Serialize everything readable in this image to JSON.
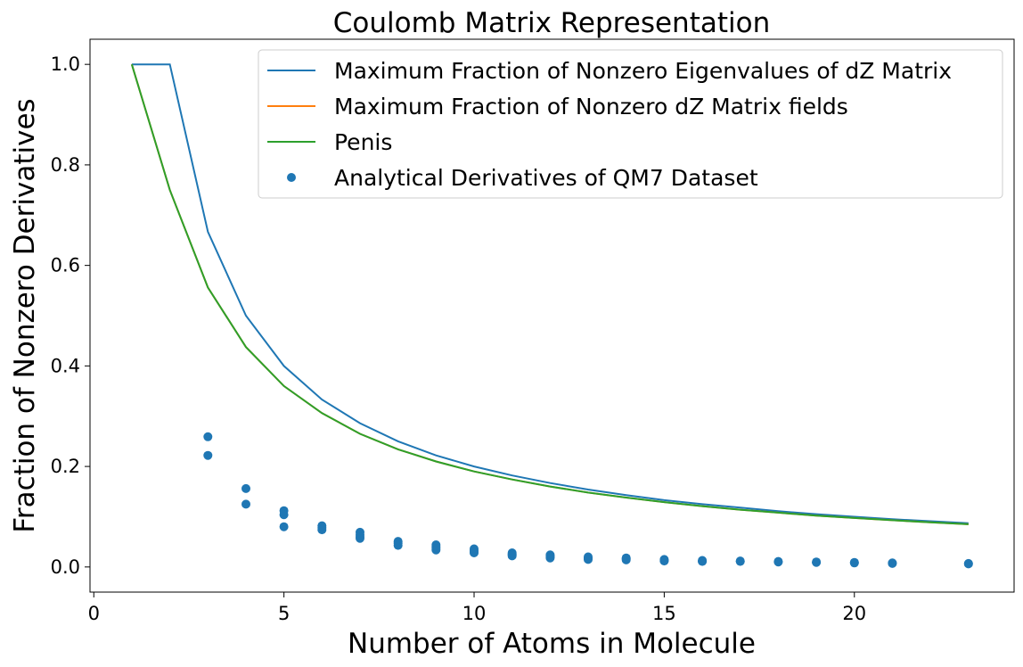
{
  "chart_data": {
    "type": "line",
    "title": "Coulomb Matrix Representation",
    "xlabel": "Number of Atoms in Molecule",
    "ylabel": "Fraction of Nonzero Derivatives",
    "xlim": [
      -0.1,
      24.2
    ],
    "ylim": [
      -0.05,
      1.05
    ],
    "xticks": [
      0,
      5,
      10,
      15,
      20
    ],
    "yticks": [
      0.0,
      0.2,
      0.4,
      0.6,
      0.8,
      1.0
    ],
    "xtick_labels": [
      "0",
      "5",
      "10",
      "15",
      "20"
    ],
    "ytick_labels": [
      "0.0",
      "0.2",
      "0.4",
      "0.6",
      "0.8",
      "1.0"
    ],
    "legend_position": "top-right",
    "grid": false,
    "series": [
      {
        "name": "Maximum Fraction of Nonzero Eigenvalues of dZ Matrix",
        "kind": "line",
        "color": "#1f77b4",
        "points": [
          [
            1,
            1.0
          ],
          [
            2,
            1.0
          ],
          [
            3,
            0.667
          ],
          [
            4,
            0.5
          ],
          [
            5,
            0.4
          ],
          [
            6,
            0.333
          ],
          [
            7,
            0.286
          ],
          [
            8,
            0.25
          ],
          [
            9,
            0.222
          ],
          [
            10,
            0.2
          ],
          [
            11,
            0.182
          ],
          [
            12,
            0.167
          ],
          [
            13,
            0.154
          ],
          [
            14,
            0.143
          ],
          [
            15,
            0.133
          ],
          [
            16,
            0.125
          ],
          [
            17,
            0.118
          ],
          [
            18,
            0.111
          ],
          [
            19,
            0.105
          ],
          [
            20,
            0.1
          ],
          [
            21,
            0.095
          ],
          [
            22,
            0.091
          ],
          [
            23,
            0.087
          ]
        ]
      },
      {
        "name": "Maximum Fraction of Nonzero dZ Matrix fields",
        "kind": "line",
        "color": "#ff7f0e",
        "points": [
          [
            1,
            1.0
          ],
          [
            2,
            0.75
          ],
          [
            3,
            0.556
          ],
          [
            4,
            0.4375
          ],
          [
            5,
            0.36
          ],
          [
            6,
            0.306
          ],
          [
            7,
            0.265
          ],
          [
            8,
            0.234
          ],
          [
            9,
            0.21
          ],
          [
            10,
            0.19
          ],
          [
            11,
            0.174
          ],
          [
            12,
            0.16
          ],
          [
            13,
            0.148
          ],
          [
            14,
            0.138
          ],
          [
            15,
            0.129
          ],
          [
            16,
            0.121
          ],
          [
            17,
            0.114
          ],
          [
            18,
            0.108
          ],
          [
            19,
            0.102
          ],
          [
            20,
            0.0975
          ],
          [
            21,
            0.093
          ],
          [
            22,
            0.089
          ],
          [
            23,
            0.085
          ]
        ]
      },
      {
        "name": "Penis",
        "kind": "line",
        "color": "#2ca02c",
        "points": [
          [
            1,
            1.0
          ],
          [
            2,
            0.75
          ],
          [
            3,
            0.556
          ],
          [
            4,
            0.4375
          ],
          [
            5,
            0.36
          ],
          [
            6,
            0.306
          ],
          [
            7,
            0.265
          ],
          [
            8,
            0.234
          ],
          [
            9,
            0.21
          ],
          [
            10,
            0.19
          ],
          [
            11,
            0.174
          ],
          [
            12,
            0.16
          ],
          [
            13,
            0.148
          ],
          [
            14,
            0.138
          ],
          [
            15,
            0.129
          ],
          [
            16,
            0.121
          ],
          [
            17,
            0.114
          ],
          [
            18,
            0.108
          ],
          [
            19,
            0.102
          ],
          [
            20,
            0.0975
          ],
          [
            21,
            0.093
          ],
          [
            22,
            0.089
          ],
          [
            23,
            0.085
          ]
        ]
      },
      {
        "name": "Analytical Derivatives of QM7 Dataset",
        "kind": "scatter",
        "color": "#1f77b4",
        "points": [
          [
            3,
            0.259
          ],
          [
            3,
            0.222
          ],
          [
            4,
            0.156
          ],
          [
            4,
            0.125
          ],
          [
            5,
            0.112
          ],
          [
            5,
            0.104
          ],
          [
            5,
            0.08
          ],
          [
            6,
            0.082
          ],
          [
            6,
            0.078
          ],
          [
            6,
            0.074
          ],
          [
            7,
            0.069
          ],
          [
            7,
            0.064
          ],
          [
            7,
            0.06
          ],
          [
            7,
            0.057
          ],
          [
            8,
            0.051
          ],
          [
            8,
            0.047
          ],
          [
            8,
            0.043
          ],
          [
            9,
            0.044
          ],
          [
            9,
            0.04
          ],
          [
            9,
            0.037
          ],
          [
            9,
            0.034
          ],
          [
            10,
            0.036
          ],
          [
            10,
            0.033
          ],
          [
            10,
            0.03
          ],
          [
            10,
            0.028
          ],
          [
            11,
            0.028
          ],
          [
            11,
            0.026
          ],
          [
            11,
            0.024
          ],
          [
            11,
            0.022
          ],
          [
            12,
            0.024
          ],
          [
            12,
            0.022
          ],
          [
            12,
            0.02
          ],
          [
            12,
            0.018
          ],
          [
            13,
            0.02
          ],
          [
            13,
            0.018
          ],
          [
            13,
            0.016
          ],
          [
            13,
            0.015
          ],
          [
            14,
            0.018
          ],
          [
            14,
            0.016
          ],
          [
            14,
            0.014
          ],
          [
            15,
            0.015
          ],
          [
            15,
            0.013
          ],
          [
            15,
            0.012
          ],
          [
            16,
            0.013
          ],
          [
            16,
            0.012
          ],
          [
            16,
            0.011
          ],
          [
            17,
            0.012
          ],
          [
            17,
            0.011
          ],
          [
            18,
            0.011
          ],
          [
            18,
            0.01
          ],
          [
            19,
            0.01
          ],
          [
            19,
            0.009
          ],
          [
            20,
            0.009
          ],
          [
            20,
            0.008
          ],
          [
            21,
            0.008
          ],
          [
            21,
            0.007
          ],
          [
            23,
            0.007
          ],
          [
            23,
            0.006
          ]
        ]
      }
    ]
  }
}
